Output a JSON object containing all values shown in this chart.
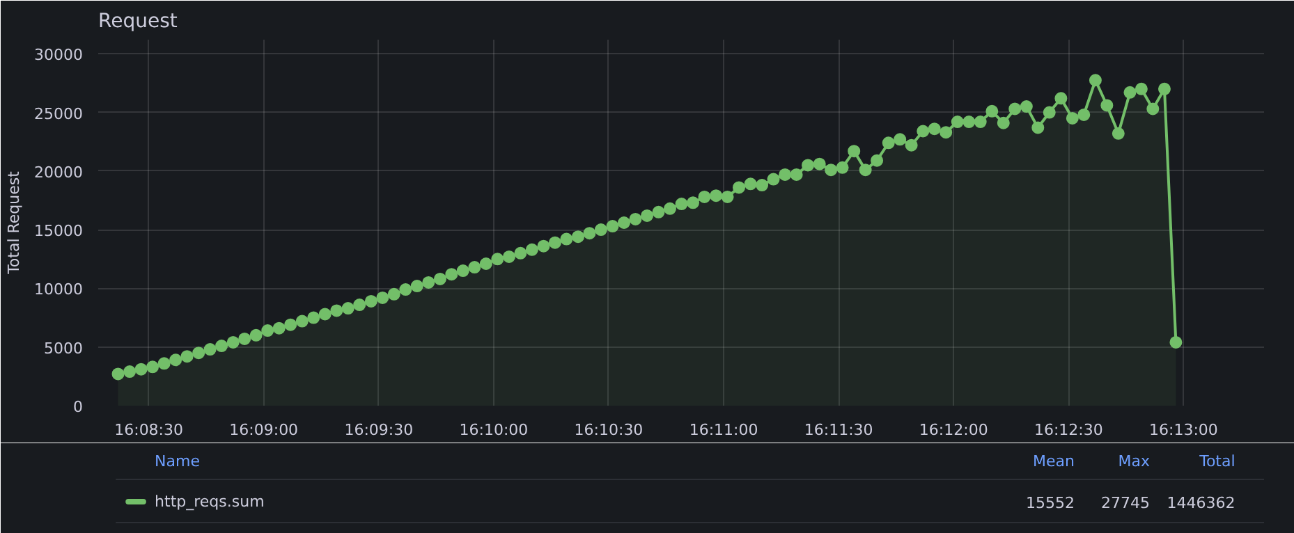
{
  "chart_data": {
    "type": "area",
    "title": "Request",
    "ylabel": "Total Request",
    "x": [
      16.13944,
      16.14028,
      16.14111,
      16.14194,
      16.14278,
      16.14361,
      16.14444,
      16.14528,
      16.14611,
      16.14694,
      16.14778,
      16.14861,
      16.14944,
      16.15028,
      16.15111,
      16.15194,
      16.15278,
      16.15361,
      16.15444,
      16.15528,
      16.15611,
      16.15694,
      16.15778,
      16.15861,
      16.15944,
      16.16028,
      16.16111,
      16.16194,
      16.16278,
      16.16361,
      16.16444,
      16.16528,
      16.16611,
      16.16694,
      16.16778,
      16.16861,
      16.16944,
      16.17028,
      16.17111,
      16.17194,
      16.17278,
      16.17361,
      16.17444,
      16.17528,
      16.17611,
      16.17694,
      16.17778,
      16.17861,
      16.17944,
      16.18028,
      16.18111,
      16.18194,
      16.18278,
      16.18361,
      16.18444,
      16.18528,
      16.18611,
      16.18694,
      16.18778,
      16.18861,
      16.18944,
      16.19028,
      16.19111,
      16.19194,
      16.19278,
      16.19361,
      16.19444,
      16.19528,
      16.19611,
      16.19694,
      16.19778,
      16.19861,
      16.19944,
      16.20028,
      16.20111,
      16.20194,
      16.20278,
      16.20361,
      16.20444,
      16.20528,
      16.20611,
      16.20694,
      16.20778,
      16.20861,
      16.20944,
      16.21028,
      16.21111,
      16.21194,
      16.21278,
      16.21361,
      16.21444,
      16.21528,
      16.21611
    ],
    "series": [
      {
        "name": "http_reqs.sum",
        "color": "#73bf69",
        "values": [
          2700,
          2900,
          3100,
          3300,
          3600,
          3900,
          4200,
          4500,
          4800,
          5100,
          5400,
          5700,
          6000,
          6400,
          6600,
          6900,
          7200,
          7500,
          7800,
          8100,
          8300,
          8600,
          8900,
          9200,
          9500,
          9900,
          10200,
          10500,
          10800,
          11200,
          11500,
          11800,
          12100,
          12500,
          12700,
          13000,
          13300,
          13600,
          13900,
          14200,
          14400,
          14700,
          15000,
          15300,
          15600,
          15900,
          16200,
          16500,
          16800,
          17200,
          17300,
          17800,
          17900,
          17800,
          18600,
          18900,
          18800,
          19300,
          19700,
          19700,
          20500,
          20600,
          20100,
          20300,
          21700,
          20100,
          20900,
          22400,
          22700,
          22200,
          23400,
          23600,
          23300,
          24200,
          24200,
          24200,
          25100,
          24100,
          25300,
          25500,
          23700,
          25000,
          26200,
          24500,
          24800,
          27745,
          25600,
          23200,
          26700,
          27000,
          25300,
          27000,
          5400
        ]
      }
    ],
    "xlim": [
      16.138,
      16.2225
    ],
    "ylim": [
      0,
      31200
    ],
    "xticks": [
      {
        "value": 16.141667,
        "label": "16:08:30"
      },
      {
        "value": 16.15,
        "label": "16:09:00"
      },
      {
        "value": 16.158333,
        "label": "16:09:30"
      },
      {
        "value": 16.166667,
        "label": "16:10:00"
      },
      {
        "value": 16.175,
        "label": "16:10:30"
      },
      {
        "value": 16.183333,
        "label": "16:11:00"
      },
      {
        "value": 16.191667,
        "label": "16:11:30"
      },
      {
        "value": 16.2,
        "label": "16:12:00"
      },
      {
        "value": 16.208333,
        "label": "16:12:30"
      },
      {
        "value": 16.216667,
        "label": "16:13:00"
      }
    ],
    "yticks": [
      0,
      5000,
      10000,
      15000,
      20000,
      25000,
      30000
    ],
    "grid": true,
    "marker": "circle",
    "line_style": "solid",
    "legend": "bottom",
    "annotations": [
      "Name",
      "Mean",
      "Max",
      "Total",
      "15552",
      "27745",
      "1446362"
    ]
  }
}
